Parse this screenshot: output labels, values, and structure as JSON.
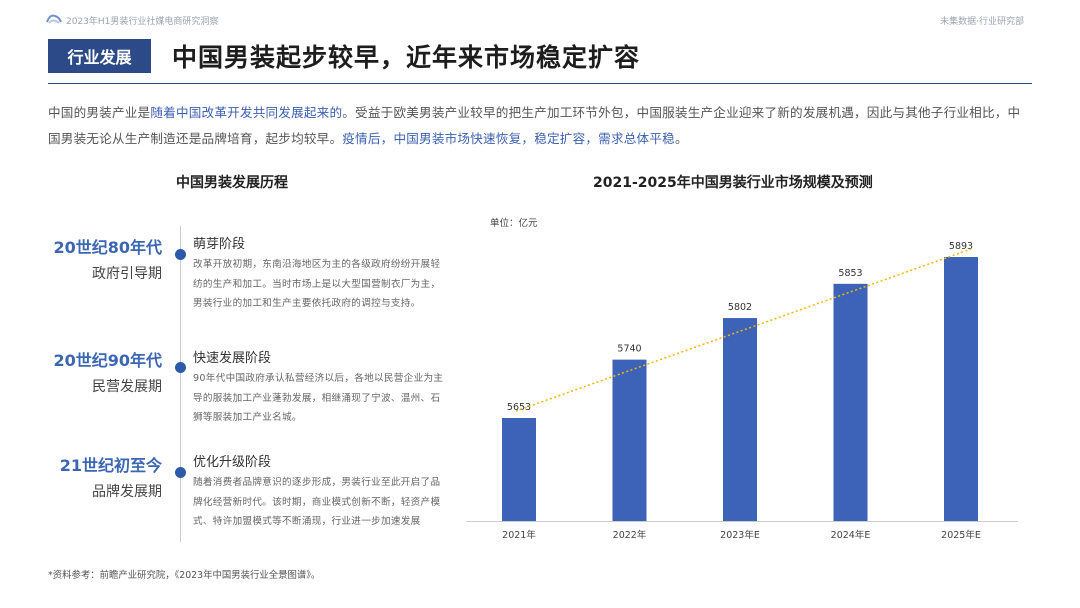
{
  "header": {
    "report_name": "2023年H1男装行业社媒电商研究洞察",
    "brand": "未集数据·行业研究部"
  },
  "slide": {
    "tag": "行业发展",
    "title": "中国男装起步较早，近年来市场稳定扩容"
  },
  "intro": {
    "p1": "中国的男装产业是",
    "p2": "随着中国改革开发共同发展起来的",
    "p3": "。受益于欧美男装产业较早的把生产加工环节外包，中国服装生产企业迎来了新的发展机遇，因此与其他子行业相比，中国男装无论从生产制造还是品牌培育，起步均较早。",
    "p4": "疫情后",
    "p5": "，",
    "p6": "中国男装市场快速恢复",
    "p7": "，",
    "p8": "稳定扩容",
    "p9": "，",
    "p10": "需求总体平稳",
    "p11": "。"
  },
  "timeline": {
    "title": "中国男装发展历程",
    "items": [
      {
        "era": "20世纪80年代",
        "phase": "政府引导期",
        "stage": "萌芽阶段",
        "desc": "改革开放初期，东南沿海地区为主的各级政府纷纷开展轻纺的生产和加工。当时市场上是以大型国营制衣厂为主，男装行业的加工和生产主要依托政府的调控与支持。"
      },
      {
        "era": "20世纪90年代",
        "phase": "民营发展期",
        "stage": "快速发展阶段",
        "desc": "90年代中国政府承认私营经济以后，各地以民营企业为主导的服装加工产业蓬勃发展，相继涌现了宁波、温州、石狮等服装加工产业名城。"
      },
      {
        "era": "21世纪初至今",
        "phase": "品牌发展期",
        "stage": "优化升级阶段",
        "desc": "随着消费者品牌意识的逐步形成，男装行业至此开启了品牌化经营新时代。该时期，商业模式创新不断，轻资产模式、特许加盟模式等不断涌现，行业进一步加速发展"
      }
    ]
  },
  "chart_data": {
    "type": "bar",
    "title": "2021-2025年中国男装行业市场规模及预测",
    "unit_label": "单位：亿元",
    "categories": [
      "2021年",
      "2022年",
      "2023年E",
      "2024年E",
      "2025年E"
    ],
    "values": [
      5653,
      5740,
      5802,
      5853,
      5893
    ],
    "trendline": true,
    "colors": {
      "bar": "#3d63b8",
      "trend": "#f2b705"
    }
  },
  "source": "*资料参考：前瞻产业研究院，《2023年中国男装行业全景图谱》。"
}
